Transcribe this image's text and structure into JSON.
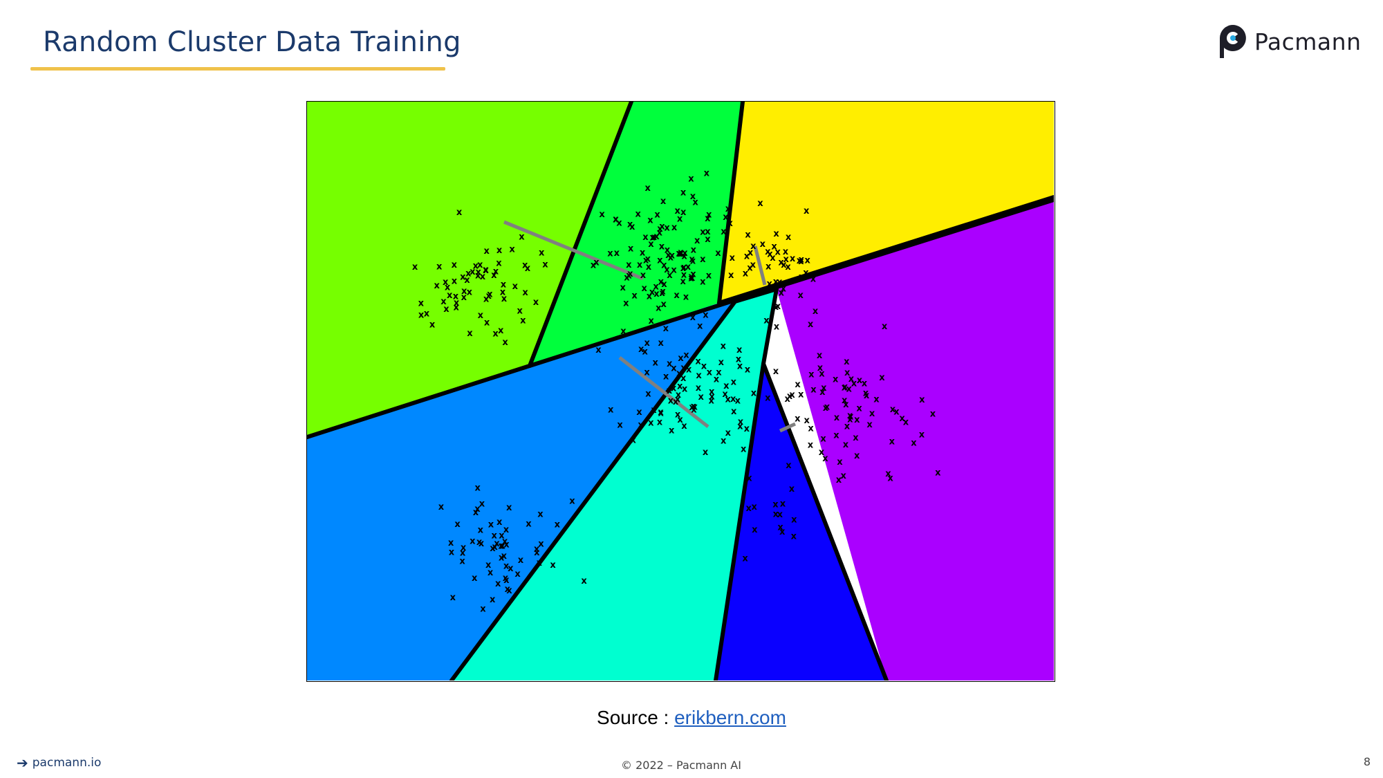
{
  "slide": {
    "title": "Random Cluster Data Training",
    "logo_text": "Pacmann",
    "source_prefix": "Source :",
    "source_link": "erikbern.com",
    "footer_link": "pacmann.io",
    "copyright": "© 2022 – Pacmann AI",
    "page_number": "8"
  },
  "colors": {
    "title": "#1b3a6b",
    "underline": "#f0c24b",
    "link": "#1f5fbf"
  },
  "figure": {
    "region_colors": {
      "lime": "#76ff00",
      "green": "#00ff3c",
      "yellow": "#ffee00",
      "orange": "#ff5500",
      "purple": "#aa00ff",
      "azure": "#0088ff",
      "aqua": "#00ffd0",
      "blue": "#0a00ff"
    },
    "marker": "x",
    "marker_color": "#000000",
    "split_line_color": "#808080"
  }
}
